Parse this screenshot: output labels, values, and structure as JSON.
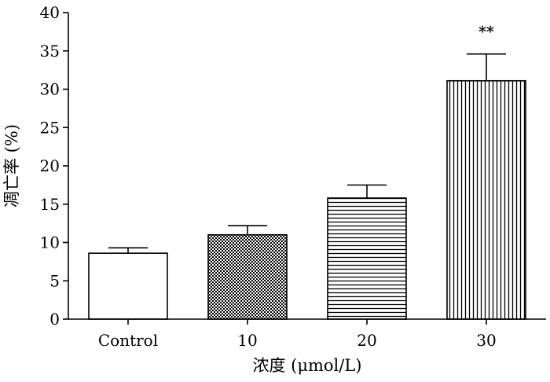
{
  "chart_data": {
    "type": "bar",
    "title": "",
    "xlabel": "浓度 (μmol/L)",
    "ylabel": "凋亡率 (%)",
    "ylim": [
      0,
      40
    ],
    "yticks": [
      0,
      5,
      10,
      15,
      20,
      25,
      30,
      35,
      40
    ],
    "categories": [
      "Control",
      "10",
      "20",
      "30"
    ],
    "values": [
      8.6,
      11.0,
      15.8,
      31.1
    ],
    "errors": [
      0.7,
      1.2,
      1.7,
      3.5
    ],
    "annotations": [
      "",
      "",
      "",
      "**"
    ],
    "patterns": [
      "none",
      "checker",
      "horizontal",
      "vertical"
    ],
    "grid": false,
    "colors": {
      "fill": "#ffffff",
      "stroke": "#000000"
    }
  }
}
